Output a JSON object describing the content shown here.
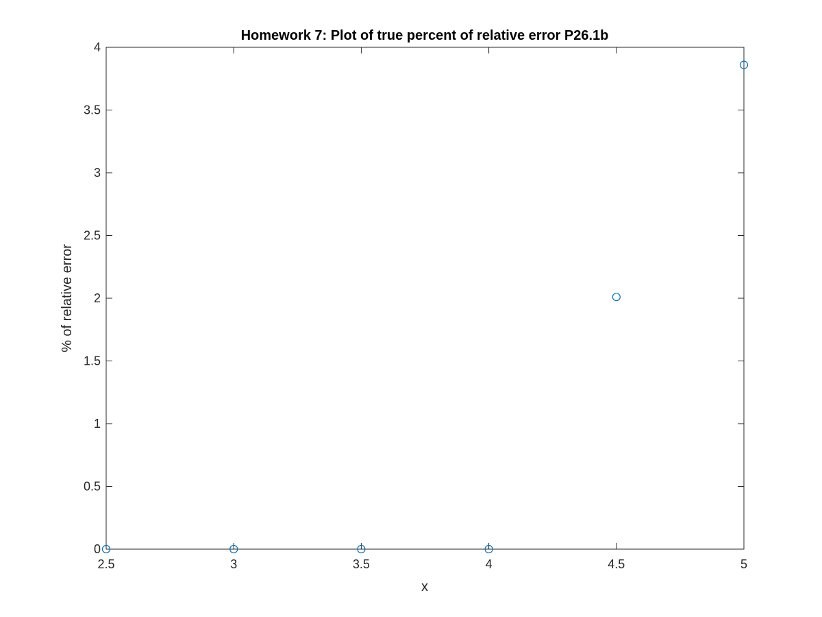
{
  "chart_data": {
    "type": "scatter",
    "title": "Homework 7: Plot of true percent of relative error P26.1b",
    "xlabel": "x",
    "ylabel": "% of relative error",
    "xlim": [
      2.5,
      5
    ],
    "ylim": [
      0,
      4
    ],
    "x_ticks": [
      2.5,
      3,
      3.5,
      4,
      4.5,
      5
    ],
    "x_tick_labels": [
      "2.5",
      "3",
      "3.5",
      "4",
      "4.5",
      "5"
    ],
    "y_ticks": [
      0,
      0.5,
      1,
      1.5,
      2,
      2.5,
      3,
      3.5,
      4
    ],
    "y_tick_labels": [
      "0",
      "0.5",
      "1",
      "1.5",
      "2",
      "2.5",
      "3",
      "3.5",
      "4"
    ],
    "grid": false,
    "marker": "circle-open",
    "series": [
      {
        "x": [
          2.5,
          3,
          3.5,
          4,
          4.5,
          5
        ],
        "y": [
          0,
          0,
          0,
          0,
          2.01,
          3.86
        ],
        "color": "#0072BD"
      }
    ]
  }
}
